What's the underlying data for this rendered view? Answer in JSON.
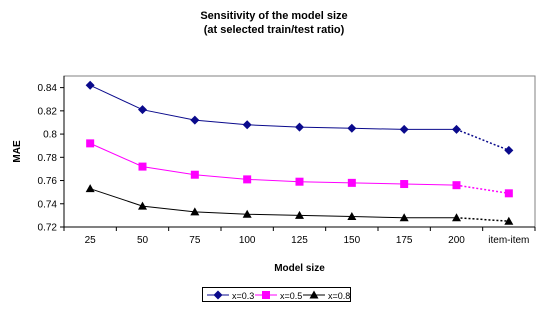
{
  "chart_data": {
    "type": "line",
    "title": "Sensitivity of the model size",
    "subtitle": "(at selected train/test ratio)",
    "xlabel": "Model size",
    "ylabel": "MAE",
    "categories": [
      "25",
      "50",
      "75",
      "100",
      "125",
      "150",
      "175",
      "200",
      "item-item"
    ],
    "ylim": [
      0.72,
      0.85
    ],
    "yticks": [
      "0.72",
      "0.74",
      "0.76",
      "0.78",
      "0.8",
      "0.82",
      "0.84"
    ],
    "grid": false,
    "legend_position": "bottom",
    "last_segment_dashed": true,
    "series": [
      {
        "name": "x=0.3",
        "color": "#0a0a8c",
        "marker": "diamond",
        "values": [
          0.842,
          0.821,
          0.812,
          0.808,
          0.806,
          0.805,
          0.804,
          0.804,
          0.786
        ]
      },
      {
        "name": "x=0.5",
        "color": "#ff00ff",
        "marker": "square",
        "values": [
          0.792,
          0.772,
          0.765,
          0.761,
          0.759,
          0.758,
          0.757,
          0.756,
          0.749
        ]
      },
      {
        "name": "x=0.8",
        "color": "#000000",
        "marker": "triangle",
        "values": [
          0.753,
          0.738,
          0.733,
          0.731,
          0.73,
          0.729,
          0.728,
          0.728,
          0.725
        ]
      }
    ]
  }
}
